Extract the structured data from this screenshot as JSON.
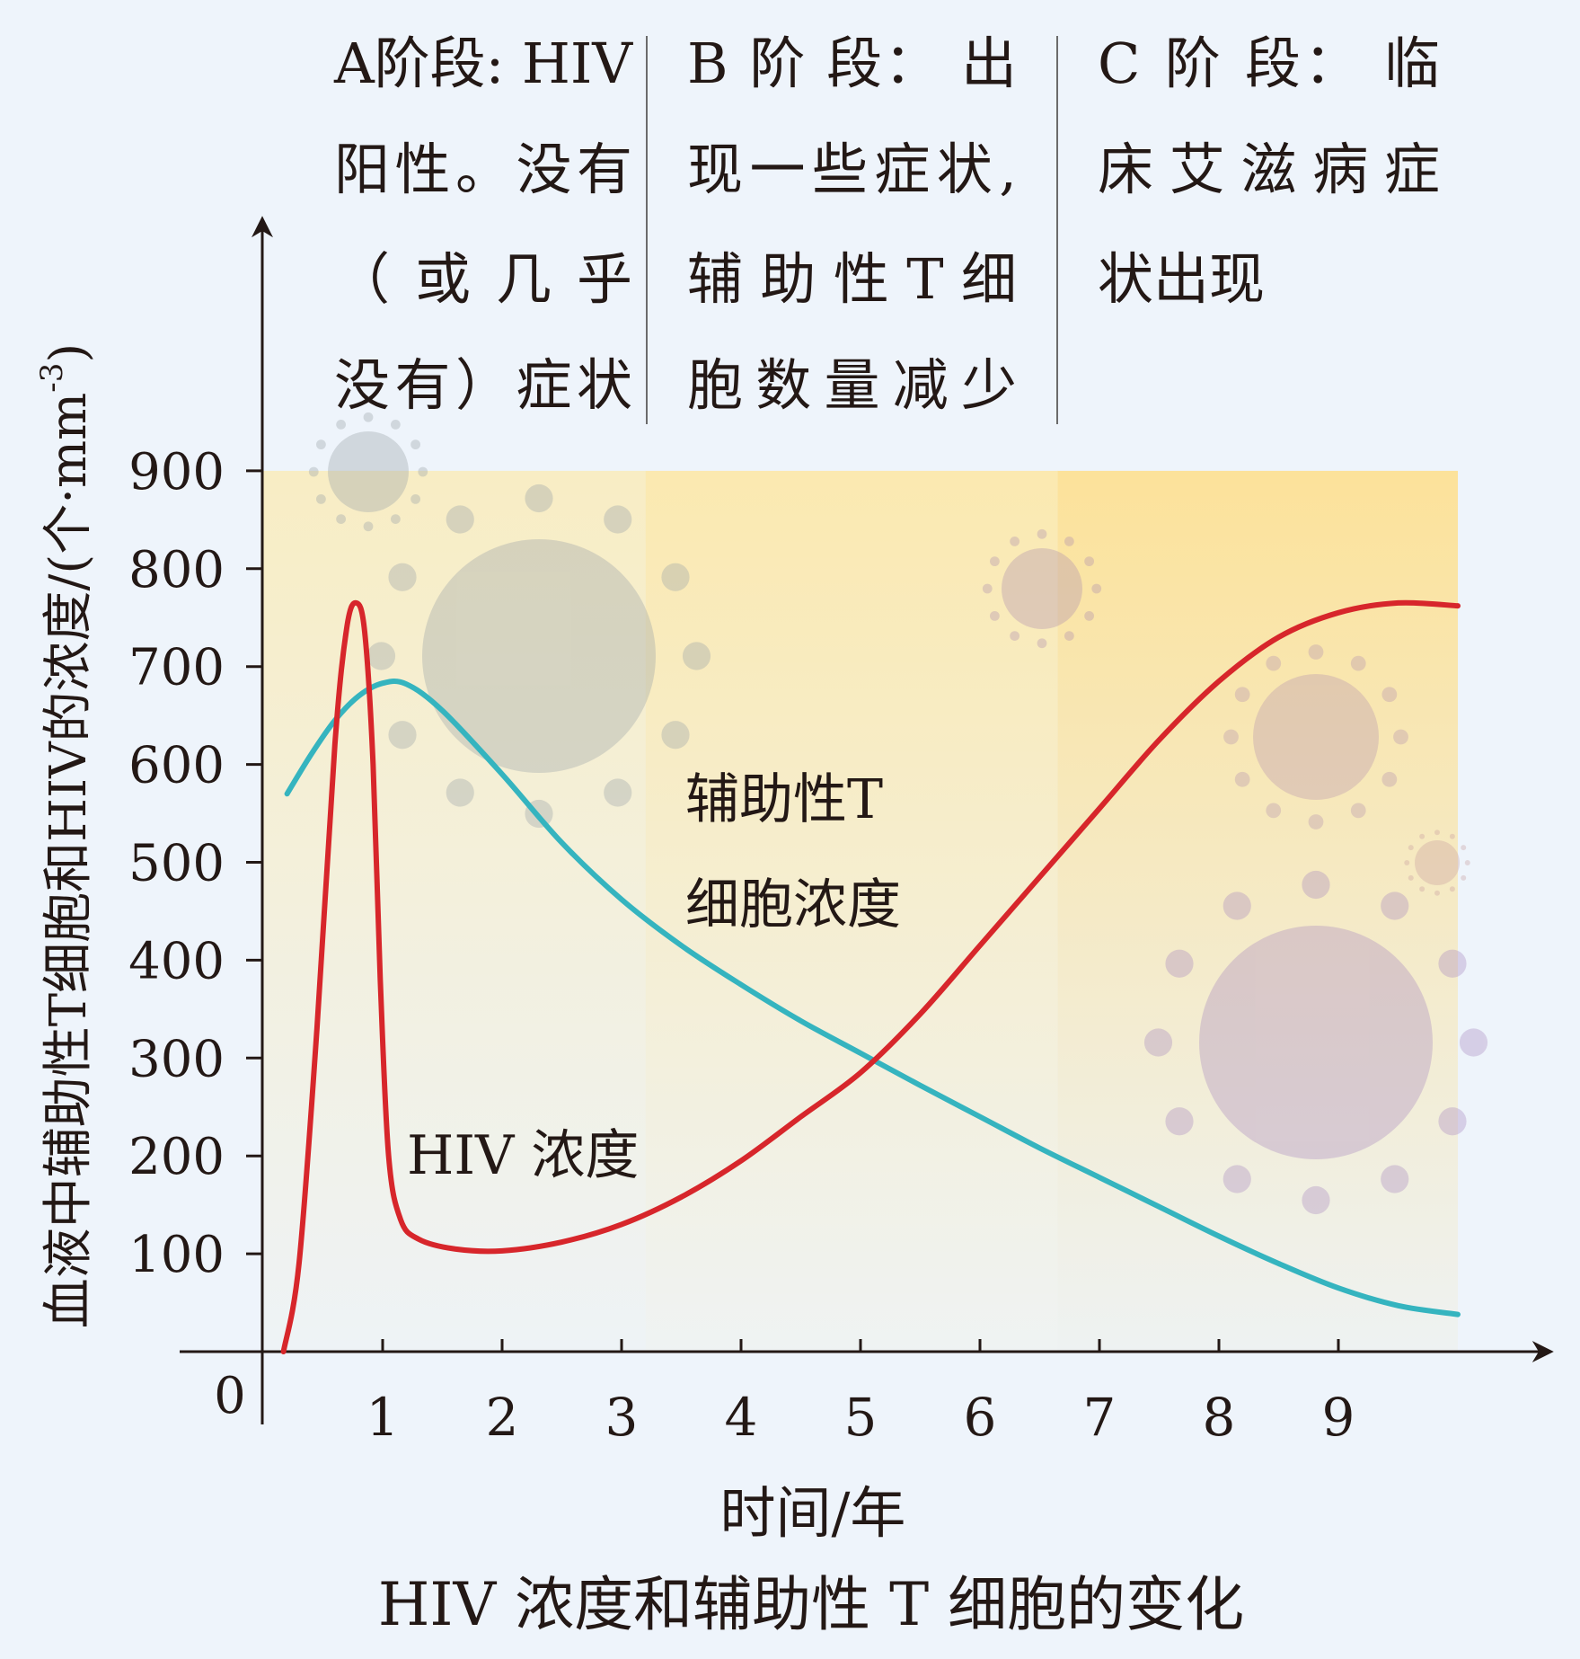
{
  "chart_data": {
    "type": "line",
    "title": "HIV 浓度和辅助性 T 细胞的变化",
    "xlabel": "时间/年",
    "ylabel": "血液中辅助性T细胞和HIV的浓度/(个·mm⁻³)",
    "ylabel_main": "血液中辅助性T细胞和HIV的浓度/(个·mm",
    "ylabel_sup": "-3",
    "ylabel_close": ")",
    "xlim": [
      0,
      10
    ],
    "ylim": [
      0,
      900
    ],
    "origin_label": "0",
    "x_ticks": [
      "1",
      "2",
      "3",
      "4",
      "5",
      "6",
      "7",
      "8",
      "9"
    ],
    "y_ticks": [
      "100",
      "200",
      "300",
      "400",
      "500",
      "600",
      "700",
      "800",
      "900"
    ],
    "series": [
      {
        "name": "HIV 浓度",
        "color": "#d7262b",
        "points": [
          [
            0.17,
            0
          ],
          [
            0.3,
            90
          ],
          [
            0.45,
            330
          ],
          [
            0.6,
            620
          ],
          [
            0.7,
            740
          ],
          [
            0.78,
            765
          ],
          [
            0.85,
            735
          ],
          [
            0.92,
            600
          ],
          [
            0.98,
            380
          ],
          [
            1.05,
            200
          ],
          [
            1.15,
            135
          ],
          [
            1.3,
            115
          ],
          [
            1.6,
            105
          ],
          [
            2.0,
            103
          ],
          [
            2.5,
            112
          ],
          [
            3.0,
            130
          ],
          [
            3.5,
            158
          ],
          [
            4.0,
            195
          ],
          [
            4.5,
            240
          ],
          [
            5.0,
            285
          ],
          [
            5.5,
            345
          ],
          [
            6.0,
            415
          ],
          [
            6.5,
            485
          ],
          [
            7.0,
            555
          ],
          [
            7.5,
            625
          ],
          [
            8.0,
            685
          ],
          [
            8.5,
            730
          ],
          [
            9.0,
            755
          ],
          [
            9.5,
            765
          ],
          [
            10.0,
            762
          ]
        ]
      },
      {
        "name": "辅助性 T 细胞浓度",
        "color": "#35b4bf",
        "points": [
          [
            0.2,
            570
          ],
          [
            0.4,
            610
          ],
          [
            0.6,
            645
          ],
          [
            0.8,
            670
          ],
          [
            1.0,
            683
          ],
          [
            1.2,
            682
          ],
          [
            1.5,
            655
          ],
          [
            2.0,
            590
          ],
          [
            2.5,
            520
          ],
          [
            3.0,
            462
          ],
          [
            3.5,
            415
          ],
          [
            4.0,
            375
          ],
          [
            4.5,
            338
          ],
          [
            5.0,
            305
          ],
          [
            5.5,
            272
          ],
          [
            6.0,
            240
          ],
          [
            6.5,
            208
          ],
          [
            7.0,
            178
          ],
          [
            7.5,
            148
          ],
          [
            8.0,
            118
          ],
          [
            8.5,
            90
          ],
          [
            9.0,
            65
          ],
          [
            9.5,
            47
          ],
          [
            10.0,
            38
          ]
        ]
      }
    ],
    "series_labels": {
      "t_cell_line1": "辅助性T",
      "t_cell_line2": "细胞浓度",
      "hiv": "HIV 浓度"
    },
    "stage_bounds": [
      3.2,
      6.65
    ],
    "stages": [
      {
        "lines": [
          "A阶段: HIV",
          "阳性。没有",
          "（ 或 几 乎",
          "没有）症状"
        ]
      },
      {
        "lines": [
          "B 阶 段：  出",
          "现一些症状,",
          "辅 助 性 T 细",
          "胞数量减少"
        ]
      },
      {
        "lines": [
          "C 阶 段：  临",
          "床 艾 滋 病 症",
          "状出现"
        ]
      }
    ]
  }
}
